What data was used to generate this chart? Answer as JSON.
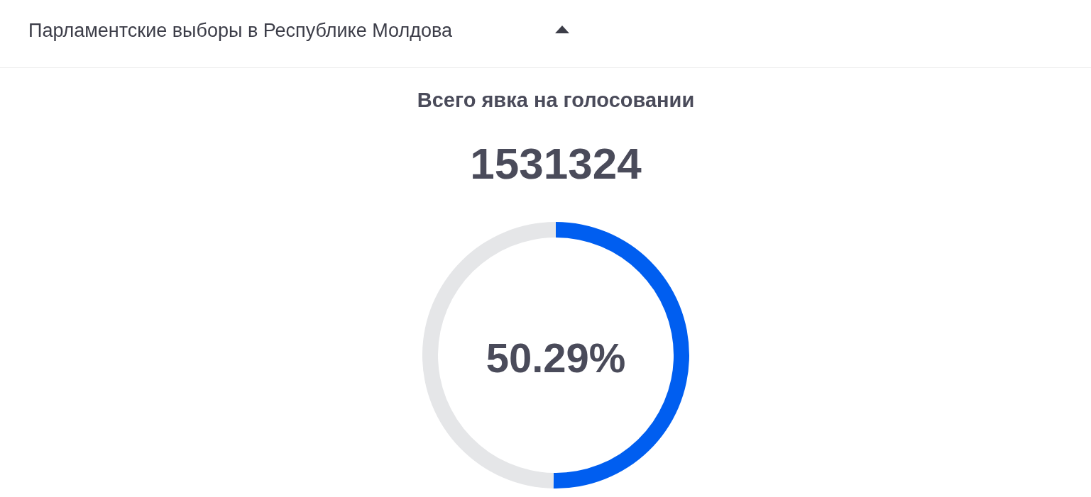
{
  "chart_data": {
    "type": "donut",
    "title": "Парламентские выборы в Республике Молдова",
    "subtitle": "Всего явка на голосовании",
    "annotations": [
      "1531324"
    ],
    "categories": [
      null,
      null
    ],
    "values": [
      50.29,
      49.71
    ],
    "colors": [
      "#005ef0",
      "#e5e6e8"
    ],
    "value_labels": [
      "50.29%",
      null
    ]
  }
}
